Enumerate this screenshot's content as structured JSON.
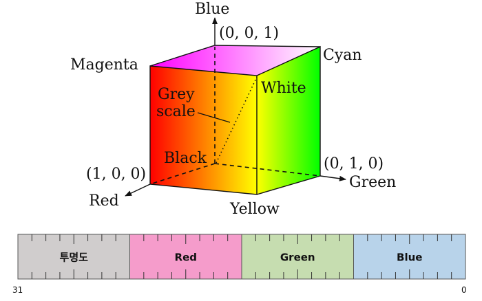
{
  "cube": {
    "axis_labels": {
      "blue": "Blue",
      "green": "Green",
      "red": "Red"
    },
    "corner_labels": {
      "magenta": "Magenta",
      "cyan": "Cyan",
      "white": "White",
      "black": "Black",
      "yellow": "Yellow"
    },
    "coordinates": {
      "blue": "(0, 0, 1)",
      "red": "(1, 0, 0)",
      "green": "(0, 1, 0)"
    },
    "grey_scale": {
      "line1": "Grey",
      "line2": "scale"
    }
  },
  "register": {
    "segments": [
      {
        "label": "투명도",
        "color": "#d0cdcd"
      },
      {
        "label": "Red",
        "color": "#f59ccb"
      },
      {
        "label": "Green",
        "color": "#c6ddb0"
      },
      {
        "label": "Blue",
        "color": "#b8d3ea"
      }
    ],
    "high_bit": "31",
    "low_bit": "0"
  }
}
